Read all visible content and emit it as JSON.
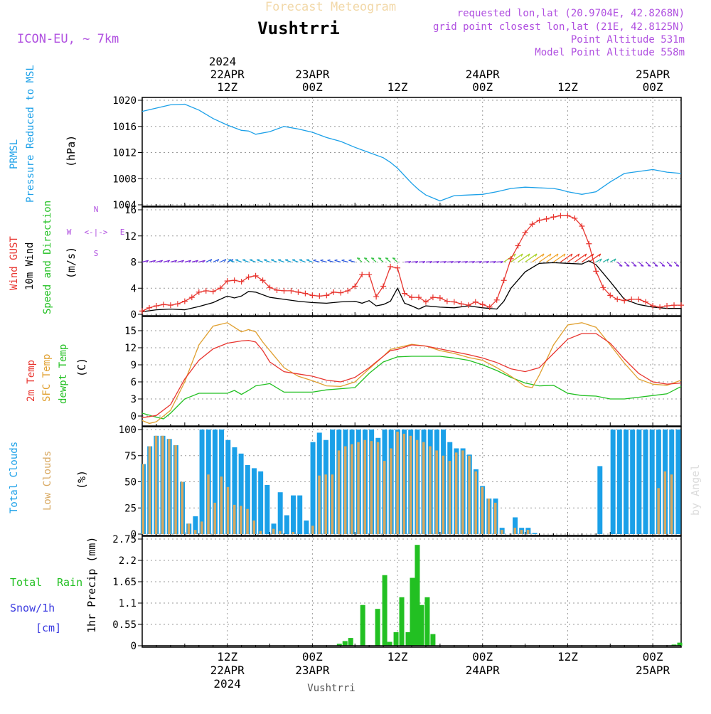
{
  "header": {
    "top_title": "Forecast Meteogram",
    "location": "Vushtrri",
    "model": "ICON-EU, ~ 7km",
    "requested": "requested lon,lat (20.9704E, 42.8268N)",
    "grid_point": "grid point closest lon,lat (21E, 42.8125N)",
    "point_altitude": "Point Altitude 531m",
    "model_altitude": "Model Point Altitude 558m",
    "credit": "by Angel",
    "footer_location": "Vushtrri"
  },
  "colors": {
    "pressure": "#1ba0e8",
    "gust": "#e8352f",
    "wind": "#000000",
    "t2m": "#e8352f",
    "sfc": "#e0a030",
    "dew": "#22c022",
    "total_clouds": "#1ba0e8",
    "low_clouds": "#d8a860",
    "rain": "#22c022",
    "snow": "#3a3ae0",
    "meta": "#b050e0"
  },
  "time_axis": {
    "top_year": "2024",
    "top_ticks": [
      {
        "h": 12,
        "date": "22APR",
        "time": "12Z"
      },
      {
        "h": 24,
        "date": "23APR",
        "time": "00Z"
      },
      {
        "h": 36,
        "date": "",
        "time": "12Z"
      },
      {
        "h": 48,
        "date": "24APR",
        "time": "00Z"
      },
      {
        "h": 60,
        "date": "",
        "time": "12Z"
      },
      {
        "h": 72,
        "date": "25APR",
        "time": "00Z"
      }
    ],
    "bottom_ticks": [
      {
        "h": 12,
        "time": "12Z",
        "date": "22APR",
        "year": "2024"
      },
      {
        "h": 24,
        "time": "00Z",
        "date": "23APR",
        "year": ""
      },
      {
        "h": 36,
        "time": "12Z",
        "date": "",
        "year": ""
      },
      {
        "h": 48,
        "time": "00Z",
        "date": "24APR",
        "year": ""
      },
      {
        "h": 60,
        "time": "12Z",
        "date": "",
        "year": ""
      },
      {
        "h": 72,
        "time": "00Z",
        "date": "25APR",
        "year": ""
      }
    ]
  },
  "panel_labels": {
    "pressure": [
      "PRMSL",
      "Pressure Reduced to MSL",
      "(hPa)"
    ],
    "wind": [
      "Wind GUST",
      "10m Wind",
      "Speed and Direction",
      "(m/s)"
    ],
    "compass": [
      "N",
      "W",
      "E",
      "S",
      "<-|->"
    ],
    "temp": [
      "2m Temp",
      "SFC Temp",
      "dewpt Temp",
      "(C)"
    ],
    "clouds": [
      "Total Clouds",
      "Low Clouds",
      "(%)"
    ],
    "precip": [
      "Total",
      "Rain",
      "Snow/1h",
      "[cm]",
      "1hr Precip (mm)"
    ]
  },
  "chart_data": [
    {
      "type": "line",
      "panel": "pressure",
      "ylabel": "(hPa)",
      "ylim": [
        1004,
        1020
      ],
      "yticks": [
        1004,
        1008,
        1012,
        1016,
        1020
      ],
      "series": [
        {
          "name": "PRMSL",
          "x": [
            0,
            2,
            4,
            6,
            8,
            10,
            12,
            14,
            15,
            16,
            18,
            20,
            22,
            24,
            26,
            28,
            30,
            32,
            34,
            35,
            36,
            38,
            39,
            40,
            42,
            44,
            46,
            48,
            50,
            52,
            54,
            56,
            58,
            59,
            60,
            62,
            64,
            66,
            68,
            70,
            72,
            74,
            76
          ],
          "values": [
            1018.3,
            1018.8,
            1019.3,
            1019.4,
            1018.5,
            1017.2,
            1016.2,
            1015.4,
            1015.3,
            1014.8,
            1015.2,
            1016.0,
            1015.6,
            1015.1,
            1014.3,
            1013.7,
            1012.8,
            1012.0,
            1011.2,
            1010.5,
            1009.6,
            1007.3,
            1006.3,
            1005.5,
            1004.6,
            1005.4,
            1005.5,
            1005.6,
            1006.0,
            1006.5,
            1006.7,
            1006.6,
            1006.5,
            1006.3,
            1006.0,
            1005.6,
            1006.0,
            1007.5,
            1008.8,
            1009.1,
            1009.4,
            1009.0,
            1008.8
          ]
        }
      ]
    },
    {
      "type": "line",
      "panel": "wind",
      "ylabel": "(m/s)",
      "ylim": [
        0,
        16
      ],
      "yticks": [
        0,
        4,
        8,
        12,
        16
      ],
      "series": [
        {
          "name": "Wind GUST",
          "x": [
            0,
            1,
            2,
            3,
            4,
            5,
            6,
            7,
            8,
            9,
            10,
            11,
            12,
            13,
            14,
            15,
            16,
            17,
            18,
            19,
            20,
            21,
            22,
            23,
            24,
            25,
            26,
            27,
            28,
            29,
            30,
            31,
            32,
            33,
            34,
            35,
            36,
            37,
            38,
            39,
            40,
            41,
            42,
            43,
            44,
            45,
            46,
            47,
            48,
            49,
            50,
            51,
            52,
            53,
            54,
            55,
            56,
            57,
            58,
            59,
            60,
            61,
            62,
            63,
            64,
            65,
            66,
            67,
            68,
            69,
            70,
            71,
            72,
            73,
            74,
            75,
            76
          ],
          "values": [
            0.5,
            1.0,
            1.3,
            1.5,
            1.4,
            1.6,
            2.0,
            2.6,
            3.4,
            3.6,
            3.5,
            4.0,
            5.1,
            5.2,
            5.0,
            5.7,
            5.9,
            5.2,
            4.1,
            3.7,
            3.6,
            3.6,
            3.4,
            3.2,
            2.9,
            2.8,
            2.9,
            3.4,
            3.3,
            3.6,
            4.3,
            6.1,
            6.1,
            2.7,
            4.3,
            7.3,
            7.1,
            3.2,
            2.6,
            2.6,
            1.9,
            2.6,
            2.5,
            2.0,
            1.9,
            1.6,
            1.4,
            1.9,
            1.5,
            1.1,
            2.2,
            5.2,
            8.5,
            10.5,
            12.5,
            13.8,
            14.4,
            14.6,
            14.9,
            15.1,
            15.1,
            14.7,
            13.5,
            10.8,
            6.6,
            4.1,
            2.9,
            2.3,
            2.1,
            2.3,
            2.3,
            1.9,
            1.3,
            1.1,
            1.3,
            1.4,
            1.4
          ]
        },
        {
          "name": "10m Wind",
          "x": [
            0,
            2,
            4,
            6,
            8,
            10,
            12,
            13,
            14,
            15,
            16,
            18,
            20,
            22,
            24,
            26,
            28,
            30,
            31,
            32,
            33,
            34,
            35,
            36,
            37,
            38,
            39,
            40,
            42,
            44,
            46,
            48,
            50,
            51,
            52,
            54,
            56,
            58,
            60,
            62,
            63,
            64,
            66,
            68,
            70,
            72,
            74,
            76
          ],
          "values": [
            0.4,
            0.7,
            0.8,
            0.7,
            1.2,
            1.8,
            2.8,
            2.5,
            2.8,
            3.5,
            3.4,
            2.6,
            2.3,
            2.0,
            1.8,
            1.7,
            1.9,
            2.0,
            1.7,
            2.1,
            1.3,
            1.5,
            2.0,
            4.0,
            1.7,
            1.3,
            0.8,
            1.3,
            1.1,
            1.0,
            1.3,
            1.0,
            0.8,
            2.0,
            4.0,
            6.5,
            7.8,
            7.9,
            7.8,
            7.7,
            8.2,
            7.6,
            5.0,
            2.3,
            1.5,
            1.1,
            0.9,
            0.9
          ]
        }
      ],
      "annotations": [
        "wind direction arrows plotted at y=8"
      ]
    },
    {
      "type": "line",
      "panel": "temperature",
      "ylabel": "(C)",
      "ylim": [
        -1.5,
        17
      ],
      "yticks": [
        0,
        3,
        6,
        9,
        12,
        15
      ],
      "series": [
        {
          "name": "2m Temp",
          "x": [
            0,
            2,
            4,
            6,
            8,
            10,
            12,
            14,
            15,
            16,
            17,
            18,
            20,
            22,
            24,
            26,
            28,
            30,
            32,
            34,
            35,
            36,
            38,
            40,
            42,
            44,
            46,
            48,
            50,
            52,
            54,
            56,
            58,
            60,
            62,
            64,
            66,
            68,
            70,
            72,
            74,
            76
          ],
          "values": [
            -0.3,
            0.1,
            2.0,
            6.5,
            9.8,
            11.8,
            12.8,
            13.2,
            13.3,
            13.0,
            11.5,
            9.5,
            7.8,
            7.4,
            7.0,
            6.3,
            6.0,
            6.8,
            8.5,
            10.5,
            11.5,
            11.7,
            12.5,
            12.3,
            11.8,
            11.3,
            10.8,
            10.2,
            9.4,
            8.3,
            7.8,
            8.5,
            11.0,
            13.5,
            14.5,
            14.5,
            12.8,
            10.0,
            7.5,
            6.0,
            5.6,
            5.8
          ]
        },
        {
          "name": "SFC Temp",
          "x": [
            0,
            1,
            2,
            3,
            4,
            6,
            8,
            10,
            12,
            13,
            14,
            15,
            16,
            17,
            18,
            20,
            22,
            24,
            26,
            28,
            30,
            32,
            34,
            35,
            36,
            38,
            40,
            42,
            44,
            46,
            48,
            50,
            52,
            54,
            55,
            56,
            58,
            60,
            62,
            64,
            66,
            68,
            70,
            72,
            74,
            76
          ],
          "values": [
            -0.8,
            -1.3,
            -1.0,
            0.0,
            1.0,
            6.0,
            12.5,
            15.8,
            16.4,
            15.6,
            14.8,
            15.2,
            14.8,
            13.0,
            11.5,
            8.5,
            7.0,
            6.2,
            5.3,
            5.2,
            6.0,
            8.3,
            10.5,
            11.7,
            12.0,
            12.6,
            12.3,
            11.5,
            11.0,
            10.3,
            9.8,
            8.5,
            7.0,
            5.2,
            5.0,
            7.2,
            12.5,
            16.0,
            16.4,
            15.6,
            12.5,
            9.3,
            6.5,
            5.6,
            5.4,
            6.3
          ]
        },
        {
          "name": "dewpt Temp",
          "x": [
            0,
            2,
            3,
            4,
            6,
            8,
            10,
            12,
            13,
            14,
            15,
            16,
            18,
            20,
            22,
            24,
            26,
            28,
            30,
            32,
            34,
            36,
            38,
            40,
            42,
            44,
            46,
            48,
            50,
            52,
            54,
            56,
            58,
            60,
            62,
            64,
            66,
            68,
            70,
            72,
            74,
            76
          ],
          "values": [
            0.5,
            -0.2,
            -0.5,
            0.5,
            3.0,
            4.0,
            4.0,
            4.0,
            4.5,
            3.8,
            4.5,
            5.3,
            5.7,
            4.2,
            4.2,
            4.2,
            4.6,
            4.8,
            5.0,
            7.5,
            9.5,
            10.4,
            10.5,
            10.5,
            10.5,
            10.2,
            9.8,
            9.0,
            8.0,
            6.8,
            5.8,
            5.3,
            5.4,
            4.0,
            3.6,
            3.5,
            3.0,
            3.0,
            3.3,
            3.6,
            3.9,
            5.2
          ]
        }
      ]
    },
    {
      "type": "bar",
      "panel": "clouds",
      "ylabel": "(%)",
      "ylim": [
        0,
        100
      ],
      "yticks": [
        0,
        25,
        50,
        75,
        100
      ],
      "x_start_hour": 0,
      "series": [
        {
          "name": "Total Clouds",
          "values": [
            67,
            84,
            94,
            94,
            91,
            85,
            50,
            10,
            17,
            100,
            100,
            100,
            100,
            90,
            83,
            77,
            66,
            63,
            60,
            47,
            10,
            40,
            18,
            37,
            37,
            13,
            88,
            97,
            90,
            100,
            100,
            100,
            100,
            100,
            100,
            100,
            92,
            100,
            100,
            100,
            100,
            100,
            100,
            100,
            100,
            100,
            100,
            88,
            82,
            82,
            76,
            62,
            46,
            34,
            34,
            6,
            0,
            16,
            6,
            6,
            1,
            0,
            0,
            0,
            0,
            0,
            0,
            0,
            0,
            0,
            65,
            0,
            100,
            100,
            100,
            100,
            100,
            100,
            100,
            100,
            100,
            100,
            100
          ]
        },
        {
          "name": "Low Clouds",
          "values": [
            67,
            84,
            94,
            94,
            91,
            85,
            50,
            10,
            4,
            12,
            57,
            30,
            55,
            45,
            28,
            27,
            24,
            13,
            3,
            0,
            5,
            3,
            0,
            2,
            0,
            0,
            8,
            56,
            57,
            57,
            80,
            84,
            86,
            88,
            90,
            89,
            88,
            70,
            82,
            98,
            96,
            94,
            90,
            88,
            84,
            80,
            75,
            70,
            78,
            80,
            75,
            60,
            45,
            34,
            30,
            4,
            0,
            6,
            4,
            4,
            0,
            0,
            0,
            0,
            0,
            0,
            0,
            0,
            0,
            0,
            0,
            0,
            0,
            0,
            0,
            0,
            0,
            0,
            0,
            44,
            60,
            57,
            0
          ]
        }
      ]
    },
    {
      "type": "bar",
      "panel": "precipitation",
      "ylabel": "1hr Precip (mm)",
      "ylim": [
        0,
        2.75
      ],
      "yticks": [
        0,
        0.55,
        1.1,
        1.65,
        2.2,
        2.75
      ],
      "series": [
        {
          "name": "Total Rain",
          "x": [
            27.8,
            28.6,
            29.4,
            31.1,
            33.2,
            34.2,
            34.9,
            35.8,
            36.6,
            37.5,
            38.1,
            38.8,
            39.4,
            40.2,
            41.0
          ],
          "values": [
            0.05,
            0.12,
            0.2,
            1.05,
            0.95,
            1.82,
            0.1,
            0.35,
            1.25,
            0.35,
            1.75,
            2.6,
            1.05,
            1.25,
            0.3
          ]
        },
        {
          "name": "Snow/1h",
          "x": [
            75.0,
            75.8
          ],
          "values": [
            0.03,
            0.08
          ]
        }
      ]
    }
  ]
}
